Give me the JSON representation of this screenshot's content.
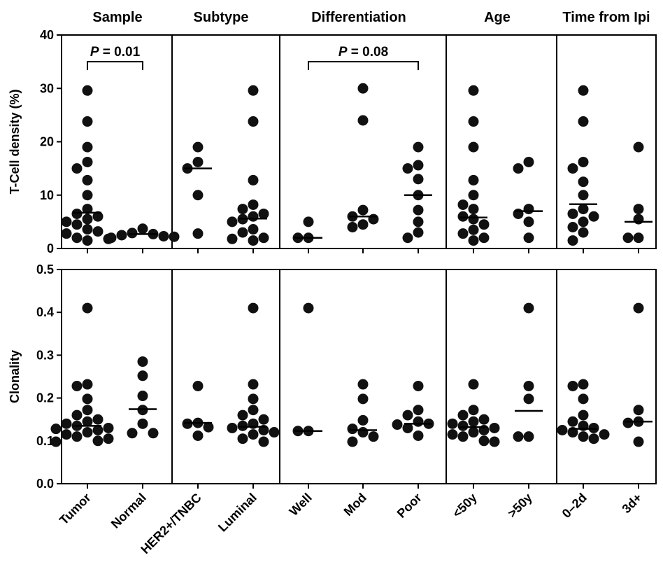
{
  "chart_data": {
    "type": "scatter",
    "groups": [
      {
        "title": "Sample",
        "categories": [
          "Tumor",
          "Normal"
        ]
      },
      {
        "title": "Subtype",
        "categories": [
          "HER2+/TNBC",
          "Luminal"
        ]
      },
      {
        "title": "Differentiation",
        "categories": [
          "Well",
          "Mod",
          "Poor"
        ]
      },
      {
        "title": "Age",
        "categories": [
          "<50y",
          ">50y"
        ]
      },
      {
        "title": "Time from Ipi",
        "categories": [
          "0–2d",
          "3d+"
        ]
      }
    ],
    "panels": [
      {
        "ylabel": "T-Cell density (%)",
        "ylim": [
          0,
          40
        ],
        "yticks": [
          "0",
          "10",
          "20",
          "30",
          "40"
        ],
        "ytick_values": [
          0,
          10,
          20,
          30,
          40
        ],
        "series": [
          {
            "category": "Tumor",
            "median": 6.7,
            "values": [
              29.6,
              23.8,
              19.0,
              16.2,
              15.0,
              12.8,
              10.0,
              7.4,
              6.5,
              6.0,
              5.5,
              5.0,
              4.5,
              3.6,
              3.2,
              2.8,
              2.0,
              1.8,
              1.5
            ]
          },
          {
            "category": "Normal",
            "median": 2.7,
            "values": [
              3.7,
              2.9,
              2.7,
              2.5,
              2.3,
              2.0,
              2.2
            ]
          },
          {
            "category": "HER2+/TNBC",
            "median": 15.0,
            "values": [
              19.0,
              16.2,
              15.0,
              10.0,
              2.8
            ]
          },
          {
            "category": "Luminal",
            "median": 5.6,
            "values": [
              29.6,
              23.8,
              12.8,
              8.2,
              7.4,
              6.5,
              6.0,
              5.5,
              5.0,
              3.6,
              3.0,
              2.0,
              1.8,
              1.5
            ]
          },
          {
            "category": "Well",
            "median": 2.0,
            "values": [
              5.0,
              2.0,
              2.0
            ]
          },
          {
            "category": "Mod",
            "median": 6.0,
            "values": [
              30.0,
              24.0,
              7.2,
              6.0,
              5.5,
              4.5,
              4.0
            ]
          },
          {
            "category": "Poor",
            "median": 10.0,
            "values": [
              19.0,
              15.6,
              15.0,
              13.0,
              10.0,
              7.2,
              5.0,
              3.0,
              2.0
            ]
          },
          {
            "category": "<50y",
            "median": 5.8,
            "values": [
              29.6,
              23.8,
              19.0,
              12.8,
              10.0,
              8.2,
              7.4,
              6.0,
              5.5,
              4.5,
              3.5,
              2.8,
              2.0,
              1.5
            ]
          },
          {
            "category": ">50y",
            "median": 7.0,
            "values": [
              16.2,
              15.0,
              7.4,
              6.5,
              5.0,
              2.0
            ]
          },
          {
            "category": "0–2d",
            "median": 8.3,
            "values": [
              29.6,
              23.8,
              16.2,
              15.0,
              12.5,
              10.0,
              7.4,
              6.5,
              6.0,
              5.0,
              4.0,
              3.0,
              1.5
            ]
          },
          {
            "category": "3d+",
            "median": 5.0,
            "values": [
              19.0,
              7.4,
              5.5,
              2.0,
              2.0
            ]
          }
        ],
        "annotations": [
          {
            "text_prefix": "P",
            "text_value": " = 0.01",
            "from": "Tumor",
            "to": "Normal",
            "y_value": 35.0
          },
          {
            "text_prefix": "P",
            "text_value": " = 0.08",
            "from": "Well",
            "to": "Poor",
            "y_value": 35.0
          }
        ]
      },
      {
        "ylabel": "Clonality",
        "ylim": [
          0,
          0.5
        ],
        "yticks": [
          "0.0",
          "0.1",
          "0.2",
          "0.3",
          "0.4",
          "0.5"
        ],
        "ytick_values": [
          0.0,
          0.1,
          0.2,
          0.3,
          0.4,
          0.5
        ],
        "series": [
          {
            "category": "Tumor",
            "median": 0.135,
            "values": [
              0.41,
              0.232,
              0.228,
              0.198,
              0.172,
              0.16,
              0.15,
              0.145,
              0.14,
              0.135,
              0.13,
              0.128,
              0.125,
              0.12,
              0.115,
              0.11,
              0.105,
              0.1,
              0.098
            ]
          },
          {
            "category": "Normal",
            "median": 0.174,
            "values": [
              0.285,
              0.252,
              0.205,
              0.172,
              0.14,
              0.118,
              0.118
            ]
          },
          {
            "category": "HER2+/TNBC",
            "median": 0.142,
            "values": [
              0.228,
              0.142,
              0.14,
              0.132,
              0.112
            ]
          },
          {
            "category": "Luminal",
            "median": 0.133,
            "values": [
              0.41,
              0.232,
              0.198,
              0.172,
              0.16,
              0.15,
              0.14,
              0.135,
              0.13,
              0.125,
              0.12,
              0.115,
              0.105,
              0.098
            ]
          },
          {
            "category": "Well",
            "median": 0.123,
            "values": [
              0.41,
              0.123,
              0.123
            ]
          },
          {
            "category": "Mod",
            "median": 0.125,
            "values": [
              0.232,
              0.198,
              0.148,
              0.128,
              0.12,
              0.11,
              0.098
            ]
          },
          {
            "category": "Poor",
            "median": 0.14,
            "values": [
              0.228,
              0.172,
              0.16,
              0.145,
              0.14,
              0.138,
              0.13,
              0.112
            ]
          },
          {
            "category": "<50y",
            "median": 0.132,
            "values": [
              0.232,
              0.172,
              0.16,
              0.15,
              0.145,
              0.14,
              0.135,
              0.13,
              0.125,
              0.12,
              0.115,
              0.11,
              0.1,
              0.098
            ]
          },
          {
            "category": ">50y",
            "median": 0.17,
            "values": [
              0.41,
              0.228,
              0.198,
              0.11,
              0.11
            ]
          },
          {
            "category": "0–2d",
            "median": 0.128,
            "values": [
              0.232,
              0.228,
              0.198,
              0.16,
              0.145,
              0.135,
              0.13,
              0.125,
              0.12,
              0.115,
              0.11,
              0.105
            ]
          },
          {
            "category": "3d+",
            "median": 0.145,
            "values": [
              0.41,
              0.172,
              0.145,
              0.142,
              0.098
            ]
          }
        ]
      }
    ]
  }
}
